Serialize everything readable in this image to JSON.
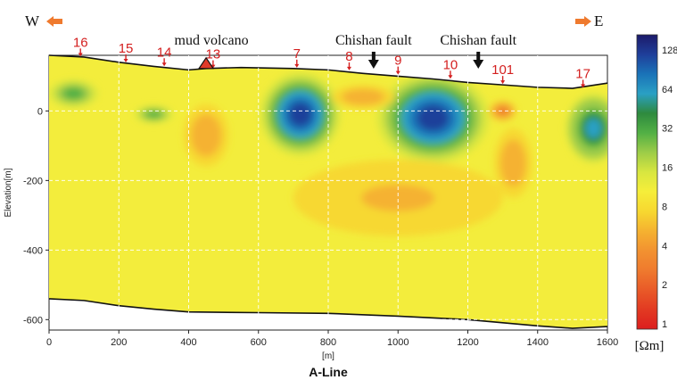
{
  "chart_data": {
    "type": "heatmap",
    "title": "A-Line",
    "xlabel": "[m]",
    "ylabel": "Elevation[m]",
    "xlim": [
      0,
      1600
    ],
    "ylim": [
      -630,
      160
    ],
    "x_ticks": [
      "0",
      "200",
      "400",
      "600",
      "800",
      "1000",
      "1200",
      "1400",
      "1600"
    ],
    "y_ticks": [
      "0",
      "-200",
      "-400",
      "-600"
    ],
    "grid": true,
    "direction_left": "W",
    "direction_right": "E",
    "colorbar": {
      "unit": "[Ωm]",
      "scale": "log",
      "labels": [
        "128",
        "64",
        "32",
        "16",
        "8",
        "4",
        "2",
        "1"
      ],
      "colors": [
        "#1c1a6a",
        "#1f3f9a",
        "#1a73b8",
        "#2aa0c4",
        "#2e8a3e",
        "#52b045",
        "#9dcc48",
        "#d8e640",
        "#f6ee3a",
        "#f7d830",
        "#f5b230",
        "#f29230",
        "#ef7a2e",
        "#e95a28",
        "#e23a22",
        "#dc1e1e"
      ]
    },
    "surface": [
      [
        0,
        160
      ],
      [
        100,
        155
      ],
      [
        200,
        140
      ],
      [
        300,
        128
      ],
      [
        400,
        118
      ],
      [
        450,
        122
      ],
      [
        550,
        125
      ],
      [
        700,
        122
      ],
      [
        800,
        118
      ],
      [
        900,
        108
      ],
      [
        1000,
        100
      ],
      [
        1100,
        92
      ],
      [
        1200,
        82
      ],
      [
        1300,
        75
      ],
      [
        1400,
        68
      ],
      [
        1500,
        65
      ],
      [
        1600,
        80
      ]
    ],
    "bottom": [
      [
        0,
        -540
      ],
      [
        100,
        -545
      ],
      [
        200,
        -560
      ],
      [
        300,
        -570
      ],
      [
        400,
        -578
      ],
      [
        600,
        -580
      ],
      [
        800,
        -582
      ],
      [
        1000,
        -590
      ],
      [
        1200,
        -600
      ],
      [
        1400,
        -618
      ],
      [
        1500,
        -625
      ],
      [
        1600,
        -620
      ]
    ],
    "stations": [
      {
        "label": "16",
        "x": 90,
        "elev": 154
      },
      {
        "label": "15",
        "x": 220,
        "elev": 137
      },
      {
        "label": "14",
        "x": 330,
        "elev": 126
      },
      {
        "label": "13",
        "x": 470,
        "elev": 120
      },
      {
        "label": "7",
        "x": 710,
        "elev": 122
      },
      {
        "label": "8",
        "x": 860,
        "elev": 114
      },
      {
        "label": "9",
        "x": 1000,
        "elev": 102
      },
      {
        "label": "10",
        "x": 1150,
        "elev": 90
      },
      {
        "label": "101",
        "x": 1300,
        "elev": 75
      },
      {
        "label": "17",
        "x": 1530,
        "elev": 64
      }
    ],
    "annotations": [
      {
        "text": "mud volcano",
        "x": 450,
        "type": "triangle"
      },
      {
        "text": "Chishan fault",
        "x": 930,
        "type": "arrow"
      },
      {
        "text": "Chishan fault",
        "x": 1230,
        "type": "arrow"
      }
    ],
    "anomalies": [
      {
        "x": 70,
        "y": 50,
        "rx": 70,
        "ry": 40,
        "resistivity": 32
      },
      {
        "x": 300,
        "y": -10,
        "rx": 55,
        "ry": 25,
        "resistivity": 32
      },
      {
        "x": 720,
        "y": -10,
        "rx": 115,
        "ry": 120,
        "resistivity": 128
      },
      {
        "x": 1100,
        "y": -20,
        "rx": 160,
        "ry": 130,
        "resistivity": 128
      },
      {
        "x": 1560,
        "y": -50,
        "rx": 80,
        "ry": 100,
        "resistivity": 64
      },
      {
        "x": 450,
        "y": -70,
        "rx": 65,
        "ry": 90,
        "resistivity": 4
      },
      {
        "x": 1300,
        "y": 0,
        "rx": 40,
        "ry": 30,
        "resistivity": 2
      },
      {
        "x": 900,
        "y": 40,
        "rx": 90,
        "ry": 35,
        "resistivity": 4
      },
      {
        "x": 1330,
        "y": -150,
        "rx": 55,
        "ry": 100,
        "resistivity": 4
      },
      {
        "x": 1000,
        "y": -250,
        "rx": 300,
        "ry": 110,
        "resistivity": 5
      }
    ]
  }
}
